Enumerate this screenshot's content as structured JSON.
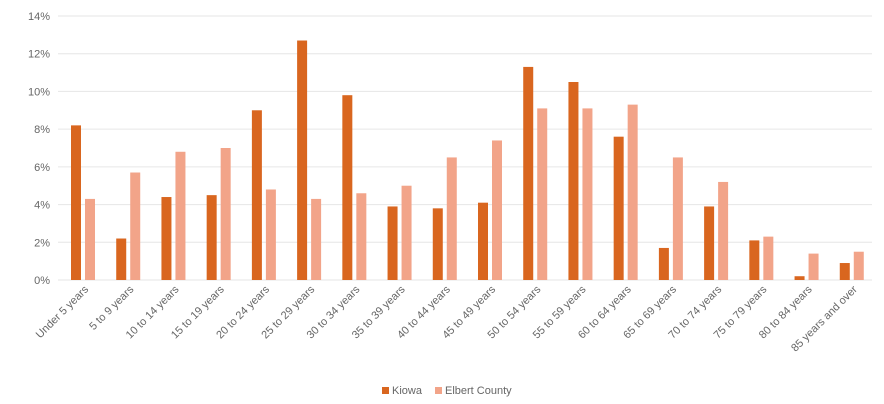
{
  "chart_data": {
    "type": "bar",
    "categories": [
      "Under 5 years",
      "5 to 9 years",
      "10 to 14 years",
      "15 to 19 years",
      "20 to 24 years",
      "25 to 29 years",
      "30 to 34 years",
      "35 to 39 years",
      "40 to 44 years",
      "45 to 49 years",
      "50 to 54 years",
      "55 to 59 years",
      "60 to 64 years",
      "65 to 69 years",
      "70 to 74 years",
      "75 to 79 years",
      "80 to 84 years",
      "85 years and over"
    ],
    "series": [
      {
        "name": "Kiowa",
        "color": "#d9661f",
        "values": [
          8.2,
          2.2,
          4.4,
          4.5,
          9.0,
          12.7,
          9.8,
          3.9,
          3.8,
          4.1,
          11.3,
          10.5,
          7.6,
          1.7,
          3.9,
          2.1,
          0.2,
          0.9
        ]
      },
      {
        "name": "Elbert County",
        "color": "#f2a489",
        "values": [
          4.3,
          5.7,
          6.8,
          7.0,
          4.8,
          4.3,
          4.6,
          5.0,
          6.5,
          7.4,
          9.1,
          9.1,
          9.3,
          6.5,
          5.2,
          2.3,
          1.4,
          1.5
        ]
      }
    ],
    "yticks": [
      "0%",
      "2%",
      "4%",
      "6%",
      "8%",
      "10%",
      "12%",
      "14%"
    ],
    "ylim": [
      0,
      14
    ],
    "grid": true,
    "legend": "bottom-center",
    "title": "",
    "xlabel": "",
    "ylabel": ""
  }
}
